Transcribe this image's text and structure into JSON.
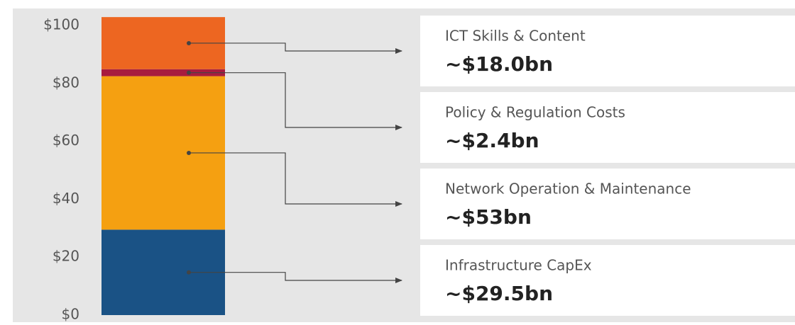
{
  "chart_data": {
    "type": "bar",
    "ylim": [
      0,
      100
    ],
    "yticks": [
      {
        "value": 0,
        "label": "$0"
      },
      {
        "value": 20,
        "label": "$20"
      },
      {
        "value": 40,
        "label": "$40"
      },
      {
        "value": 60,
        "label": "$60"
      },
      {
        "value": 80,
        "label": "$80"
      },
      {
        "value": 100,
        "label": "$100"
      }
    ],
    "series": [
      {
        "name": "Infrastructure CapEx",
        "color": "#1a5285",
        "values": [
          29.5
        ],
        "value_labels": [
          "~$29.5bn"
        ]
      },
      {
        "name": "Network Operation & Maintenance",
        "color": "#f5a011",
        "values": [
          53
        ],
        "value_labels": [
          "~$53bn"
        ]
      },
      {
        "name": "Policy & Regulation Costs",
        "color": "#a81c3f",
        "values": [
          2.4
        ],
        "value_labels": [
          "~$2.4bn"
        ]
      },
      {
        "name": "ICT Skills & Content",
        "color": "#ed6621",
        "values": [
          18.0
        ],
        "value_labels": [
          "~$18.0bn"
        ]
      }
    ]
  }
}
